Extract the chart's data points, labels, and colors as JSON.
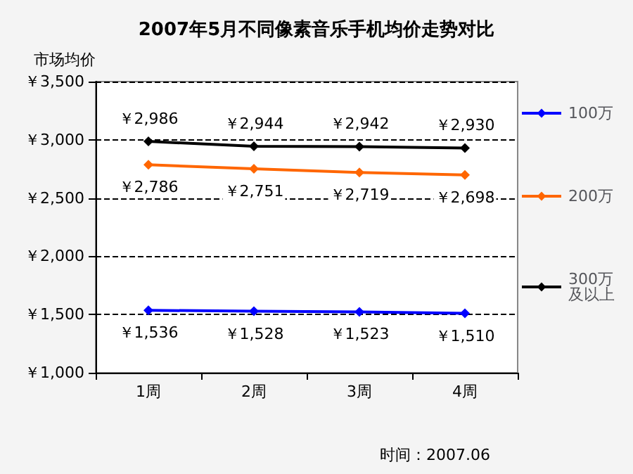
{
  "chart_data": {
    "type": "line",
    "title": "2007年5月不同像素音乐手机均价走势对比",
    "ylabel": "市场均价",
    "categories": [
      "1周",
      "2周",
      "3周",
      "4周"
    ],
    "series": [
      {
        "name": "100万",
        "color": "#0000ff",
        "values": [
          1536,
          1528,
          1523,
          1510
        ],
        "value_labels": [
          "￥1,536",
          "￥1,528",
          "￥1,523",
          "￥1,510"
        ]
      },
      {
        "name": "200万",
        "color": "#ff6600",
        "values": [
          2786,
          2751,
          2719,
          2698
        ],
        "value_labels": [
          "￥2,786",
          "￥2,751",
          "￥2,719",
          "￥2,698"
        ]
      },
      {
        "name": "300万及以上",
        "color": "#000000",
        "values": [
          2986,
          2944,
          2942,
          2930
        ],
        "value_labels": [
          "￥2,986",
          "￥2,944",
          "￥2,942",
          "￥2,930"
        ]
      }
    ],
    "ylim": [
      1000,
      3500
    ],
    "yticks": [
      {
        "value": 1000,
        "label": "￥1,000"
      },
      {
        "value": 1500,
        "label": "￥1,500"
      },
      {
        "value": 2000,
        "label": "￥2,000"
      },
      {
        "value": 2500,
        "label": "￥2,500"
      },
      {
        "value": 3000,
        "label": "￥3,000"
      },
      {
        "value": 3500,
        "label": "￥3,500"
      }
    ],
    "grid": "y",
    "legend": "right",
    "marker": "diamond",
    "annotations": [
      "时间：2007.06"
    ]
  }
}
